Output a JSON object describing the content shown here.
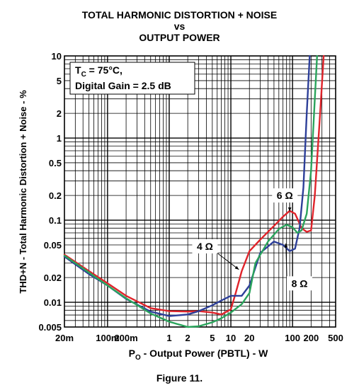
{
  "figure_label": "Figure 11.",
  "chart_data": {
    "type": "line",
    "title_lines": [
      "TOTAL HARMONIC DISTORTION + NOISE",
      "vs",
      "OUTPUT POWER"
    ],
    "xlabel_main": "P",
    "xlabel_sub": "O",
    "xlabel_rest": " - Output Power (PBTL) - W",
    "ylabel": "THD+N - Total Harmonic Distortion + Noise - %",
    "x_scale": "log",
    "y_scale": "log",
    "xlim": [
      0.02,
      500
    ],
    "ylim": [
      0.005,
      10
    ],
    "grid": true,
    "x_ticks": [
      {
        "value": 0.02,
        "label": "20m"
      },
      {
        "value": 0.1,
        "label": "100m"
      },
      {
        "value": 0.2,
        "label": "200m"
      },
      {
        "value": 1,
        "label": "1"
      },
      {
        "value": 2,
        "label": "2"
      },
      {
        "value": 5,
        "label": "5"
      },
      {
        "value": 10,
        "label": "10"
      },
      {
        "value": 20,
        "label": "20"
      },
      {
        "value": 100,
        "label": "100"
      },
      {
        "value": 200,
        "label": "200"
      },
      {
        "value": 500,
        "label": "500"
      }
    ],
    "y_ticks": [
      {
        "value": 0.005,
        "label": "0.005"
      },
      {
        "value": 0.01,
        "label": "0.01"
      },
      {
        "value": 0.02,
        "label": "0.02"
      },
      {
        "value": 0.05,
        "label": "0.05"
      },
      {
        "value": 0.1,
        "label": "0.1"
      },
      {
        "value": 0.2,
        "label": "0.2"
      },
      {
        "value": 0.5,
        "label": "0.5"
      },
      {
        "value": 1,
        "label": "1"
      },
      {
        "value": 2,
        "label": "2"
      },
      {
        "value": 5,
        "label": "5"
      },
      {
        "value": 10,
        "label": "10"
      }
    ],
    "condition_line1_main": "T",
    "condition_line1_sub": "C",
    "condition_line1_rest": " = 75°C,",
    "condition_line2": "Digital Gain = 2.5 dB",
    "series": [
      {
        "name": "4 Ω",
        "color": "#e0242b",
        "points": [
          [
            0.02,
            0.038
          ],
          [
            0.05,
            0.024
          ],
          [
            0.1,
            0.017
          ],
          [
            0.2,
            0.012
          ],
          [
            0.5,
            0.0085
          ],
          [
            1,
            0.0078
          ],
          [
            2,
            0.0077
          ],
          [
            3,
            0.0078
          ],
          [
            5,
            0.0075
          ],
          [
            7,
            0.0071
          ],
          [
            10,
            0.0082
          ],
          [
            12,
            0.013
          ],
          [
            15,
            0.024
          ],
          [
            20,
            0.042
          ],
          [
            30,
            0.058
          ],
          [
            50,
            0.085
          ],
          [
            70,
            0.11
          ],
          [
            90,
            0.13
          ],
          [
            110,
            0.12
          ],
          [
            140,
            0.08
          ],
          [
            170,
            0.072
          ],
          [
            200,
            0.075
          ],
          [
            230,
            0.2
          ],
          [
            280,
            2
          ],
          [
            320,
            10
          ]
        ]
      },
      {
        "name": "6 Ω",
        "color": "#2d3f99",
        "points": [
          [
            0.02,
            0.036
          ],
          [
            0.05,
            0.022
          ],
          [
            0.1,
            0.016
          ],
          [
            0.2,
            0.011
          ],
          [
            0.5,
            0.0077
          ],
          [
            1,
            0.0068
          ],
          [
            2,
            0.0071
          ],
          [
            3,
            0.0078
          ],
          [
            5,
            0.0092
          ],
          [
            7,
            0.0105
          ],
          [
            10,
            0.012
          ],
          [
            15,
            0.012
          ],
          [
            20,
            0.016
          ],
          [
            30,
            0.04
          ],
          [
            50,
            0.055
          ],
          [
            70,
            0.05
          ],
          [
            90,
            0.042
          ],
          [
            110,
            0.045
          ],
          [
            130,
            0.08
          ],
          [
            150,
            0.25
          ],
          [
            170,
            2
          ],
          [
            190,
            10
          ]
        ]
      },
      {
        "name": "8 Ω",
        "color": "#2aa45c",
        "points": [
          [
            0.02,
            0.037
          ],
          [
            0.05,
            0.023
          ],
          [
            0.1,
            0.016
          ],
          [
            0.2,
            0.0112
          ],
          [
            0.5,
            0.0073
          ],
          [
            1,
            0.0058
          ],
          [
            2,
            0.005
          ],
          [
            3,
            0.0051
          ],
          [
            5,
            0.0057
          ],
          [
            7,
            0.0064
          ],
          [
            10,
            0.0075
          ],
          [
            15,
            0.0095
          ],
          [
            20,
            0.013
          ],
          [
            25,
            0.03
          ],
          [
            40,
            0.055
          ],
          [
            60,
            0.078
          ],
          [
            80,
            0.088
          ],
          [
            100,
            0.082
          ],
          [
            120,
            0.07
          ],
          [
            140,
            0.075
          ],
          [
            170,
            0.12
          ],
          [
            200,
            0.4
          ],
          [
            230,
            3
          ],
          [
            250,
            10
          ]
        ]
      }
    ],
    "annotations": [
      {
        "label": "6 Ω",
        "x": 75,
        "y": 0.2,
        "target_x": 90,
        "target_y": 0.128
      },
      {
        "label": "4 Ω",
        "x": 3.8,
        "y": 0.048,
        "target_x": 13.5,
        "target_y": 0.025
      },
      {
        "label": "8 Ω",
        "x": 130,
        "y": 0.017,
        "target_x": 78,
        "target_y": 0.052
      }
    ]
  }
}
